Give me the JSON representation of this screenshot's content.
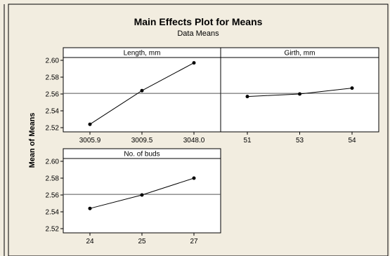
{
  "chart_data": {
    "type": "line",
    "title": "Main Effects Plot for Means",
    "subtitle": "Data Means",
    "ylabel": "Mean of Means",
    "ylim": [
      2.52,
      2.6
    ],
    "yticks": [
      "2.52",
      "2.54",
      "2.56",
      "2.58",
      "2.60"
    ],
    "reference_line": 2.5607,
    "panels": [
      {
        "name": "Length, mm",
        "categories": [
          "3005.9",
          "3009.5",
          "3048.0"
        ],
        "values": [
          2.524,
          2.564,
          2.597
        ]
      },
      {
        "name": "Girth, mm",
        "categories": [
          "51",
          "53",
          "54"
        ],
        "values": [
          2.557,
          2.56,
          2.567
        ]
      },
      {
        "name": "No. of buds",
        "categories": [
          "24",
          "25",
          "27"
        ],
        "values": [
          2.544,
          2.56,
          2.58
        ]
      }
    ],
    "grid": false,
    "colors": {
      "background": "#f2ede0",
      "plot_area": "#ffffff",
      "line": "#000000",
      "reference": "#555555"
    }
  }
}
